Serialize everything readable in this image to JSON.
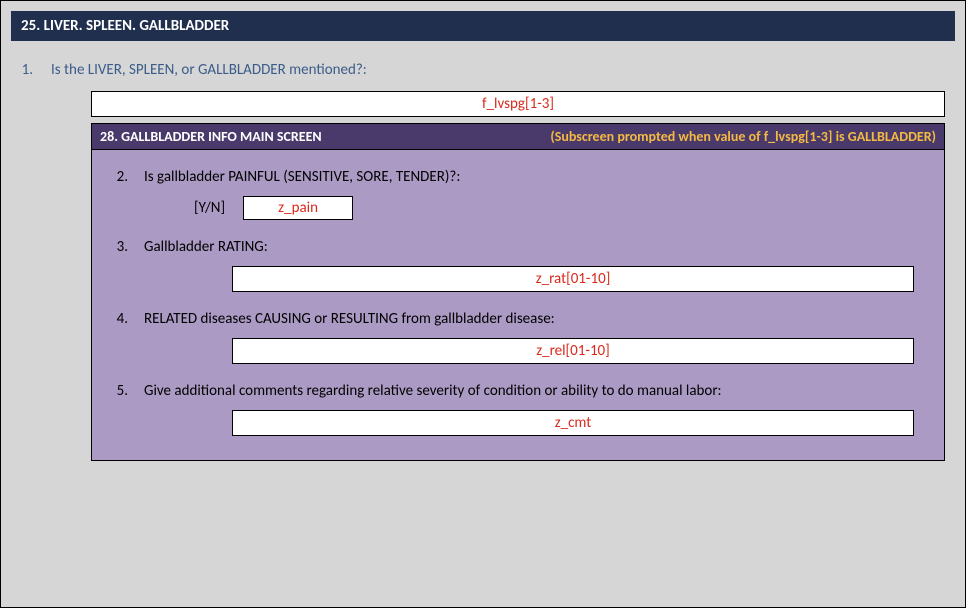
{
  "section": {
    "header": "25. LIVER. SPLEEN. GALLBLADDER",
    "q1_num": "1.",
    "q1_text": "Is the LIVER, SPLEEN, or GALLBLADDER mentioned?:",
    "q1_field": "f_lvspg[1-3]"
  },
  "subscreen": {
    "title": "28. GALLBLADDER INFO MAIN SCREEN",
    "note": "(Subscreen prompted when value of f_lvspg[1-3] is GALLBLADDER)",
    "q2_num": "2.",
    "q2_text": "Is gallbladder PAINFUL (SENSITIVE, SORE, TENDER)?:",
    "yn_label": "[Y/N]",
    "q2_field": "z_pain",
    "q3_num": "3.",
    "q3_text": "Gallbladder RATING:",
    "q3_field": "z_rat[01-10]",
    "q4_num": "4.",
    "q4_text": "RELATED diseases CAUSING or RESULTING from gallbladder disease:",
    "q4_field": "z_rel[01-10]",
    "q5_num": "5.",
    "q5_text": "Give additional comments regarding relative severity of condition or ability to do manual labor:",
    "q5_field": "z_cmt"
  },
  "colors": {
    "page_bg": "#d6d6d6",
    "header_bg": "#1f2f4d",
    "header_text": "#ffffff",
    "question_text": "#3b5c8a",
    "field_text": "#d92a1c",
    "field_bg": "#ffffff",
    "border": "#000000",
    "sub_bg": "#ab9ac4",
    "sub_header_bg": "#4a3a6b",
    "sub_note": "#f4b942",
    "sub_text": "#000000"
  }
}
